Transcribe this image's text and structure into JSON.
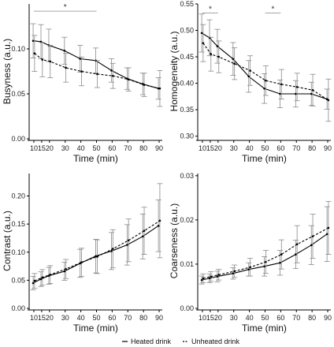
{
  "chart_data": [
    {
      "type": "line",
      "ylabel": "Busyness (a.u.)",
      "xlabel": "Time (min)",
      "x": [
        10,
        15,
        20,
        30,
        40,
        50,
        60,
        70,
        80,
        90
      ],
      "ylim": [
        0.0,
        0.15
      ],
      "yticks": [
        "0.00",
        "0.05",
        "0.10"
      ],
      "ytick_values": [
        0.0,
        0.05,
        0.1
      ],
      "series": [
        {
          "name": "Heated drink",
          "style": "solid",
          "values": [
            0.109,
            0.108,
            0.104,
            0.098,
            0.089,
            0.087,
            0.076,
            0.067,
            0.061,
            0.056
          ],
          "errors": [
            0.019,
            0.019,
            0.018,
            0.015,
            0.015,
            0.014,
            0.013,
            0.012,
            0.012,
            0.012
          ]
        },
        {
          "name": "Unheated drink",
          "style": "dashed",
          "values": [
            0.095,
            0.088,
            0.086,
            0.079,
            0.075,
            0.072,
            0.07,
            0.066,
            0.06,
            0.056
          ],
          "errors": [
            0.02,
            0.019,
            0.018,
            0.016,
            0.016,
            0.015,
            0.014,
            0.013,
            0.013,
            0.02
          ]
        }
      ],
      "significance": [
        {
          "from": 10,
          "to": 50,
          "y": 0.142,
          "label": "*"
        }
      ]
    },
    {
      "type": "line",
      "ylabel": "Homogeneity (a.u.)",
      "xlabel": "Time (min)",
      "x": [
        10,
        15,
        20,
        30,
        40,
        50,
        60,
        70,
        80,
        90
      ],
      "ylim": [
        0.295,
        0.55
      ],
      "yticks": [
        "0.30",
        "0.35",
        "0.40",
        "0.45",
        "0.50",
        "0.55"
      ],
      "ytick_values": [
        0.3,
        0.35,
        0.4,
        0.45,
        0.5,
        0.55
      ],
      "series": [
        {
          "name": "Heated drink",
          "style": "solid",
          "values": [
            0.495,
            0.486,
            0.47,
            0.446,
            0.413,
            0.39,
            0.38,
            0.38,
            0.38,
            0.37
          ],
          "errors": [
            0.036,
            0.034,
            0.032,
            0.031,
            0.03,
            0.028,
            0.026,
            0.025,
            0.022,
            0.019
          ]
        },
        {
          "name": "Unheated drink",
          "style": "dashed",
          "values": [
            0.476,
            0.455,
            0.45,
            0.437,
            0.424,
            0.405,
            0.398,
            0.393,
            0.387,
            0.368
          ],
          "errors": [
            0.035,
            0.032,
            0.03,
            0.03,
            0.028,
            0.028,
            0.028,
            0.026,
            0.03,
            0.04
          ]
        }
      ],
      "significance": [
        {
          "from": 10,
          "to": 20,
          "y": 0.533,
          "label": "*"
        },
        {
          "from": 50,
          "to": 60,
          "y": 0.533,
          "label": "*"
        }
      ]
    },
    {
      "type": "line",
      "ylabel": "Contrast (a.u.)",
      "xlabel": "Time (min)",
      "x": [
        10,
        15,
        20,
        30,
        40,
        50,
        60,
        70,
        80,
        90
      ],
      "ylim": [
        0.0,
        0.24
      ],
      "yticks": [
        "0.00",
        "0.05",
        "0.10",
        "0.15",
        "0.20"
      ],
      "ytick_values": [
        0.0,
        0.05,
        0.1,
        0.15,
        0.2
      ],
      "series": [
        {
          "name": "Heated drink",
          "style": "solid",
          "values": [
            0.045,
            0.052,
            0.058,
            0.066,
            0.08,
            0.093,
            0.102,
            0.113,
            0.128,
            0.147
          ],
          "errors": [
            0.012,
            0.013,
            0.015,
            0.016,
            0.025,
            0.03,
            0.033,
            0.036,
            0.04,
            0.046
          ]
        },
        {
          "name": "Unheated drink",
          "style": "dashed",
          "values": [
            0.049,
            0.055,
            0.06,
            0.07,
            0.082,
            0.092,
            0.106,
            0.121,
            0.138,
            0.156
          ],
          "errors": [
            0.013,
            0.014,
            0.016,
            0.017,
            0.025,
            0.03,
            0.034,
            0.038,
            0.042,
            0.066
          ]
        }
      ],
      "significance": []
    },
    {
      "type": "line",
      "ylabel": "Coarseness (a.u.)",
      "xlabel": "Time (min)",
      "x": [
        10,
        15,
        20,
        30,
        40,
        50,
        60,
        70,
        80,
        90
      ],
      "ylim": [
        0.0,
        0.0305
      ],
      "yticks": [
        "0.00",
        "0.01",
        "0.02",
        "0.03"
      ],
      "ytick_values": [
        0.0,
        0.01,
        0.02,
        0.03
      ],
      "series": [
        {
          "name": "Heated drink",
          "style": "solid",
          "values": [
            0.0064,
            0.0068,
            0.0072,
            0.0079,
            0.0088,
            0.0095,
            0.0103,
            0.0122,
            0.0143,
            0.0168
          ],
          "errors": [
            0.0009,
            0.001,
            0.0012,
            0.0013,
            0.0015,
            0.0022,
            0.0028,
            0.0032,
            0.0044,
            0.0062
          ]
        },
        {
          "name": "Unheated drink",
          "style": "dashed",
          "values": [
            0.0068,
            0.0072,
            0.0076,
            0.0084,
            0.0093,
            0.0105,
            0.0122,
            0.0145,
            0.0163,
            0.0182
          ],
          "errors": [
            0.001,
            0.0011,
            0.0012,
            0.0014,
            0.002,
            0.0026,
            0.0033,
            0.0042,
            0.005,
            0.006
          ]
        }
      ],
      "significance": []
    }
  ],
  "legend": {
    "position": "bottom",
    "items": [
      {
        "label": "Heated drink",
        "style": "solid"
      },
      {
        "label": "Unheated drink",
        "style": "dashed"
      }
    ]
  }
}
